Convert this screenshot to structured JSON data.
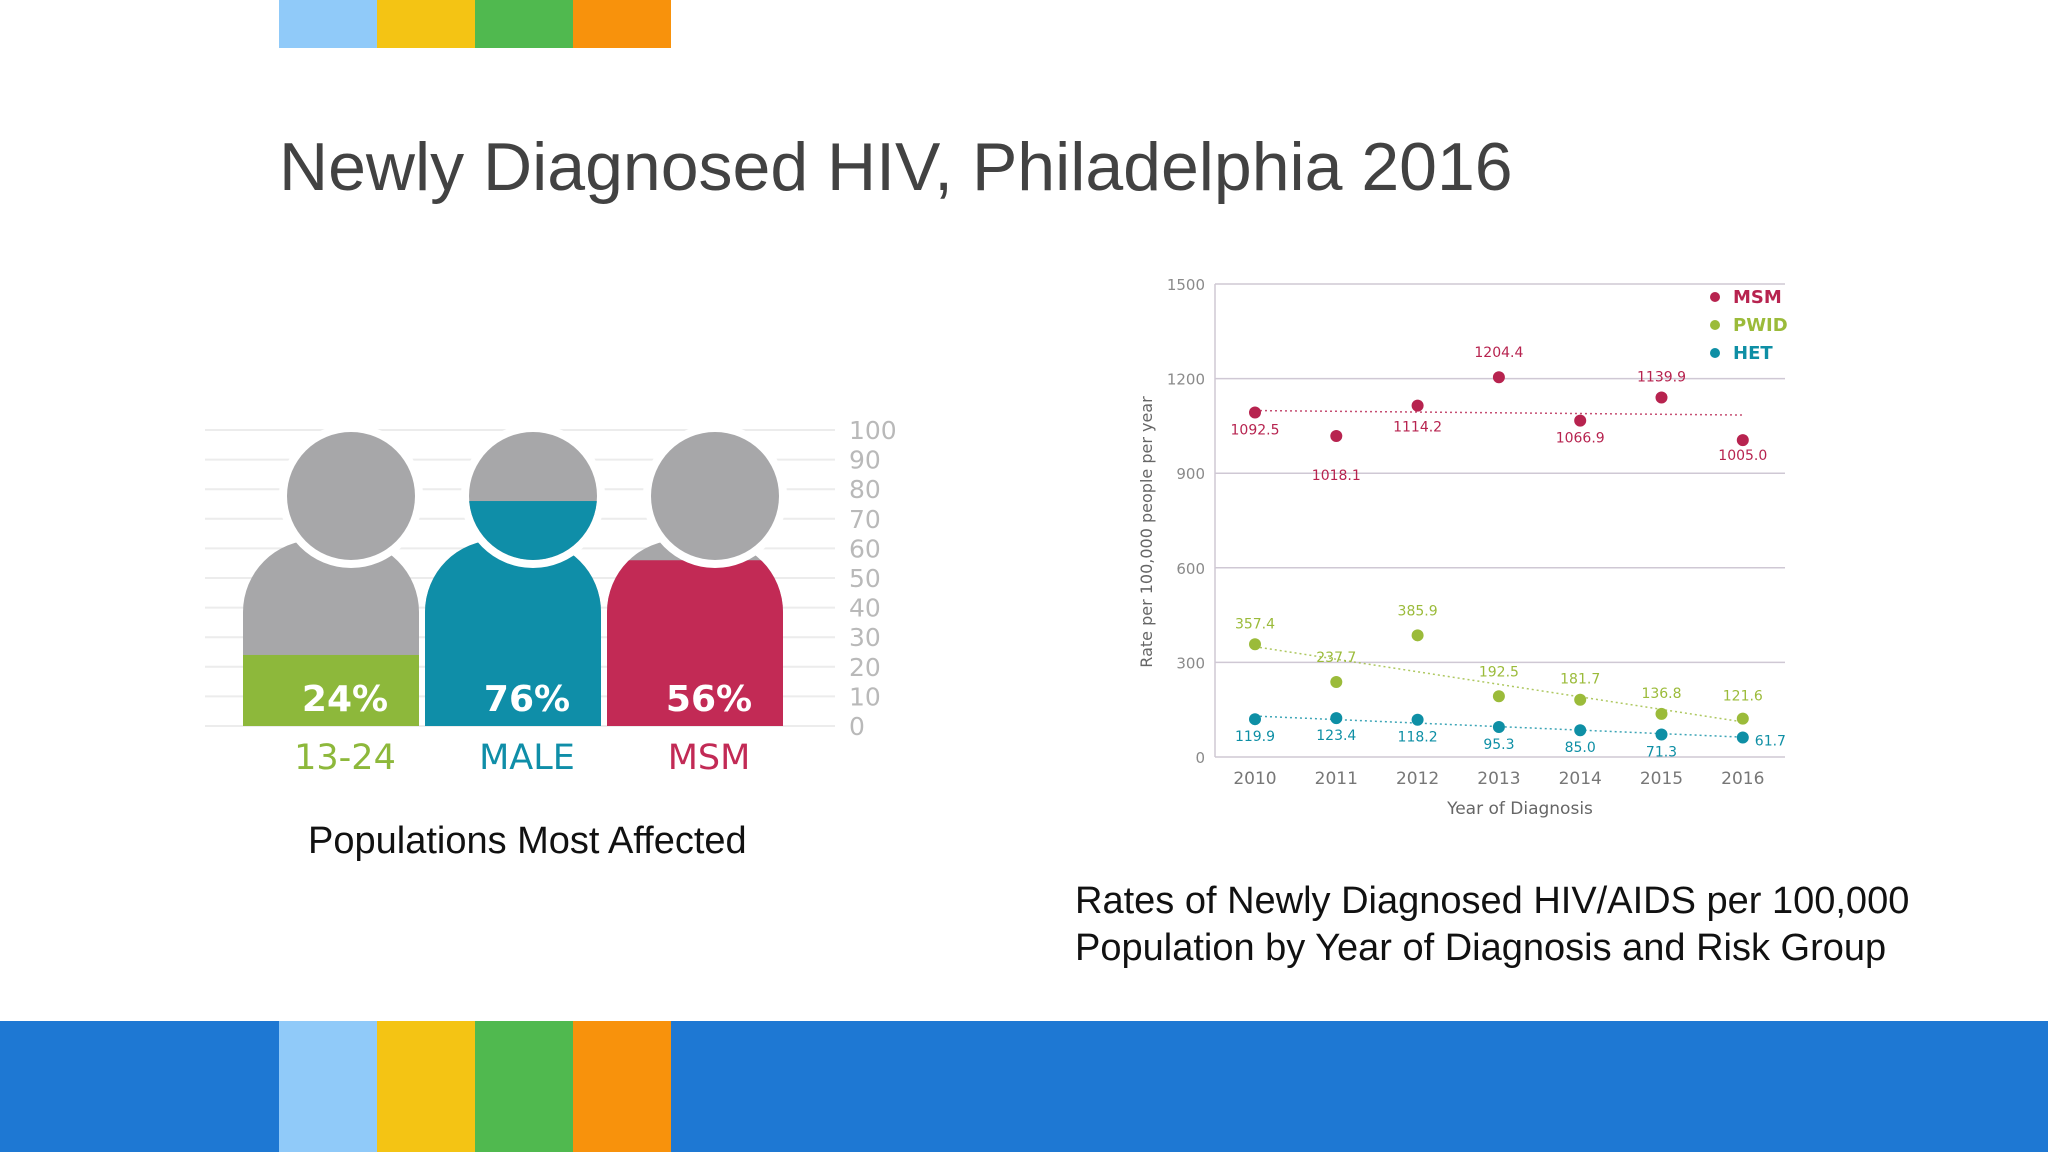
{
  "slide": {
    "title": "Newly Diagnosed HIV, Philadelphia 2016",
    "brand_colors": [
      "#90caf9",
      "#f4c414",
      "#50b94f",
      "#f8920c"
    ],
    "footer_color": "#1e78d3"
  },
  "populations": {
    "caption": "Populations Most Affected",
    "scale_ticks": [
      "100",
      "90",
      "80",
      "70",
      "60",
      "50",
      "40",
      "30",
      "20",
      "10",
      "0"
    ],
    "scale_max": 100,
    "groups": [
      {
        "label": "13-24",
        "percent": 24,
        "percent_label": "24%",
        "color": "#8db83b"
      },
      {
        "label": "MALE",
        "percent": 76,
        "percent_label": "76%",
        "color": "#0f8ea8"
      },
      {
        "label": "MSM",
        "percent": 56,
        "percent_label": "56%",
        "color": "#c22a55"
      }
    ]
  },
  "chart_data": {
    "type": "scatter",
    "title": "",
    "xlabel": "Year of Diagnosis",
    "ylabel": "Rate per 100,000 people per year",
    "x": [
      2010,
      2011,
      2012,
      2013,
      2014,
      2015,
      2016
    ],
    "x_tick_labels": [
      "2010",
      "2011",
      "2012",
      "2013",
      "2014",
      "2015",
      "2016"
    ],
    "y_ticks": [
      0,
      300,
      600,
      900,
      1200,
      1500
    ],
    "y_tick_labels": [
      "0",
      "300",
      "600",
      "900",
      "1200",
      "1500"
    ],
    "ylim": [
      0,
      1500
    ],
    "grid": true,
    "legend_position": "top-right",
    "trendlines": true,
    "caption": [
      "Rates of Newly Diagnosed HIV/AIDS per 100,000",
      "Population by Year of Diagnosis and Risk Group"
    ],
    "series": [
      {
        "name": "MSM",
        "color": "#b7234f",
        "values": [
          1092.5,
          1018.1,
          1114.2,
          1204.4,
          1066.9,
          1139.9,
          1005.0
        ],
        "labels": [
          "1092.5",
          "1018.1",
          "1114.2",
          "1204.4",
          "1066.9",
          "1139.9",
          "1005.0"
        ]
      },
      {
        "name": "PWID",
        "color": "#9bbb3a",
        "values": [
          357.4,
          237.7,
          385.9,
          192.5,
          181.7,
          136.8,
          121.6
        ],
        "labels": [
          "357.4",
          "237.7",
          "385.9",
          "192.5",
          "181.7",
          "136.8",
          "121.6"
        ]
      },
      {
        "name": "HET",
        "color": "#0e8fa5",
        "values": [
          119.9,
          123.4,
          118.2,
          95.3,
          85.0,
          71.3,
          61.7
        ],
        "labels": [
          "119.9",
          "123.4",
          "118.2",
          "95.3",
          "85.0",
          "71.3",
          "61.7"
        ]
      }
    ]
  }
}
